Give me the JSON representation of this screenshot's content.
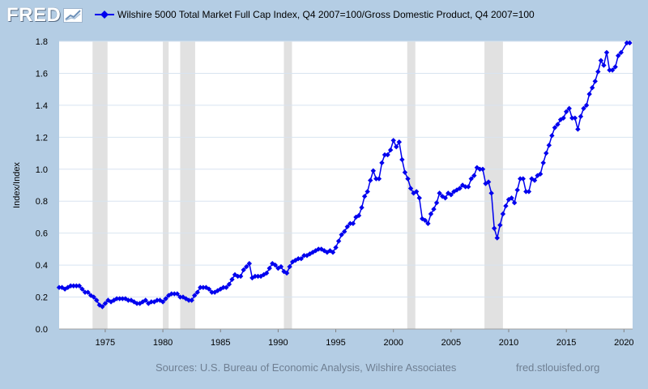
{
  "brand": {
    "logo_text": "FRED",
    "logo_icon": "trend-line-chart-icon",
    "site": "fred.stlouisfed.org"
  },
  "sources": "Sources: U.S. Bureau of Economic Analysis, Wilshire Associates",
  "colors": {
    "background": "#b4cde4",
    "plot_bg": "#ffffff",
    "series": "#0000ee",
    "recession": "#e1e1e1",
    "grid": "#d8e4f0"
  },
  "chart_data": {
    "type": "line",
    "ylabel": "Index/Index",
    "xlabel": "",
    "x_range": [
      1971.0,
      2020.75
    ],
    "ylim": [
      0.0,
      1.8
    ],
    "grid": true,
    "legend": "top",
    "y_ticks": [
      "0.0",
      "0.2",
      "0.4",
      "0.6",
      "0.8",
      "1.0",
      "1.2",
      "1.4",
      "1.6",
      "1.8"
    ],
    "x_ticks": [
      "1975",
      "1980",
      "1985",
      "1990",
      "1995",
      "2000",
      "2005",
      "2010",
      "2015",
      "2020"
    ],
    "recessions": [
      [
        1973.9,
        1975.2
      ],
      [
        1980.0,
        1980.5
      ],
      [
        1981.5,
        1982.8
      ],
      [
        1990.5,
        1991.2
      ],
      [
        2001.2,
        2001.9
      ],
      [
        2007.9,
        2009.5
      ]
    ],
    "series": [
      {
        "name": "Wilshire 5000 Total Market Full Cap Index, Q4 2007=100/Gross Domestic Product, Q4 2007=100",
        "marker": "diamond",
        "points": [
          [
            1971.0,
            0.26
          ],
          [
            1971.25,
            0.26
          ],
          [
            1971.5,
            0.25
          ],
          [
            1971.75,
            0.26
          ],
          [
            1972.0,
            0.27
          ],
          [
            1972.25,
            0.27
          ],
          [
            1972.5,
            0.27
          ],
          [
            1972.75,
            0.27
          ],
          [
            1973.0,
            0.25
          ],
          [
            1973.25,
            0.23
          ],
          [
            1973.5,
            0.23
          ],
          [
            1973.75,
            0.21
          ],
          [
            1974.0,
            0.2
          ],
          [
            1974.25,
            0.18
          ],
          [
            1974.5,
            0.15
          ],
          [
            1974.75,
            0.14
          ],
          [
            1975.0,
            0.16
          ],
          [
            1975.25,
            0.18
          ],
          [
            1975.5,
            0.17
          ],
          [
            1975.75,
            0.18
          ],
          [
            1976.0,
            0.19
          ],
          [
            1976.25,
            0.19
          ],
          [
            1976.5,
            0.19
          ],
          [
            1976.75,
            0.19
          ],
          [
            1977.0,
            0.18
          ],
          [
            1977.25,
            0.18
          ],
          [
            1977.5,
            0.17
          ],
          [
            1977.75,
            0.16
          ],
          [
            1978.0,
            0.16
          ],
          [
            1978.25,
            0.17
          ],
          [
            1978.5,
            0.18
          ],
          [
            1978.75,
            0.16
          ],
          [
            1979.0,
            0.17
          ],
          [
            1979.25,
            0.17
          ],
          [
            1979.5,
            0.18
          ],
          [
            1979.75,
            0.18
          ],
          [
            1980.0,
            0.17
          ],
          [
            1980.25,
            0.19
          ],
          [
            1980.5,
            0.21
          ],
          [
            1980.75,
            0.22
          ],
          [
            1981.0,
            0.22
          ],
          [
            1981.25,
            0.22
          ],
          [
            1981.5,
            0.2
          ],
          [
            1981.75,
            0.2
          ],
          [
            1982.0,
            0.19
          ],
          [
            1982.25,
            0.18
          ],
          [
            1982.5,
            0.18
          ],
          [
            1982.75,
            0.21
          ],
          [
            1983.0,
            0.23
          ],
          [
            1983.25,
            0.26
          ],
          [
            1983.5,
            0.26
          ],
          [
            1983.75,
            0.26
          ],
          [
            1984.0,
            0.25
          ],
          [
            1984.25,
            0.23
          ],
          [
            1984.5,
            0.23
          ],
          [
            1984.75,
            0.24
          ],
          [
            1985.0,
            0.25
          ],
          [
            1985.25,
            0.26
          ],
          [
            1985.5,
            0.26
          ],
          [
            1985.75,
            0.28
          ],
          [
            1986.0,
            0.31
          ],
          [
            1986.25,
            0.34
          ],
          [
            1986.5,
            0.33
          ],
          [
            1986.75,
            0.33
          ],
          [
            1987.0,
            0.37
          ],
          [
            1987.25,
            0.39
          ],
          [
            1987.5,
            0.41
          ],
          [
            1987.75,
            0.32
          ],
          [
            1988.0,
            0.33
          ],
          [
            1988.25,
            0.33
          ],
          [
            1988.5,
            0.33
          ],
          [
            1988.75,
            0.34
          ],
          [
            1989.0,
            0.35
          ],
          [
            1989.25,
            0.38
          ],
          [
            1989.5,
            0.41
          ],
          [
            1989.75,
            0.4
          ],
          [
            1990.0,
            0.38
          ],
          [
            1990.25,
            0.39
          ],
          [
            1990.5,
            0.36
          ],
          [
            1990.75,
            0.35
          ],
          [
            1991.0,
            0.39
          ],
          [
            1991.25,
            0.42
          ],
          [
            1991.5,
            0.43
          ],
          [
            1991.75,
            0.44
          ],
          [
            1992.0,
            0.44
          ],
          [
            1992.25,
            0.46
          ],
          [
            1992.5,
            0.46
          ],
          [
            1992.75,
            0.47
          ],
          [
            1993.0,
            0.48
          ],
          [
            1993.25,
            0.49
          ],
          [
            1993.5,
            0.5
          ],
          [
            1993.75,
            0.5
          ],
          [
            1994.0,
            0.49
          ],
          [
            1994.25,
            0.48
          ],
          [
            1994.5,
            0.49
          ],
          [
            1994.75,
            0.48
          ],
          [
            1995.0,
            0.51
          ],
          [
            1995.25,
            0.55
          ],
          [
            1995.5,
            0.59
          ],
          [
            1995.75,
            0.61
          ],
          [
            1996.0,
            0.64
          ],
          [
            1996.25,
            0.66
          ],
          [
            1996.5,
            0.66
          ],
          [
            1996.75,
            0.7
          ],
          [
            1997.0,
            0.71
          ],
          [
            1997.25,
            0.76
          ],
          [
            1997.5,
            0.83
          ],
          [
            1997.75,
            0.86
          ],
          [
            1998.0,
            0.93
          ],
          [
            1998.25,
            0.99
          ],
          [
            1998.5,
            0.94
          ],
          [
            1998.75,
            0.94
          ],
          [
            1999.0,
            1.04
          ],
          [
            1999.25,
            1.09
          ],
          [
            1999.5,
            1.09
          ],
          [
            1999.75,
            1.12
          ],
          [
            2000.0,
            1.18
          ],
          [
            2000.25,
            1.14
          ],
          [
            2000.5,
            1.17
          ],
          [
            2000.75,
            1.06
          ],
          [
            2001.0,
            0.98
          ],
          [
            2001.25,
            0.94
          ],
          [
            2001.5,
            0.88
          ],
          [
            2001.75,
            0.85
          ],
          [
            2002.0,
            0.86
          ],
          [
            2002.25,
            0.82
          ],
          [
            2002.5,
            0.69
          ],
          [
            2002.75,
            0.68
          ],
          [
            2003.0,
            0.66
          ],
          [
            2003.25,
            0.72
          ],
          [
            2003.5,
            0.75
          ],
          [
            2003.75,
            0.79
          ],
          [
            2004.0,
            0.85
          ],
          [
            2004.25,
            0.83
          ],
          [
            2004.5,
            0.82
          ],
          [
            2004.75,
            0.85
          ],
          [
            2005.0,
            0.84
          ],
          [
            2005.25,
            0.86
          ],
          [
            2005.5,
            0.87
          ],
          [
            2005.75,
            0.88
          ],
          [
            2006.0,
            0.9
          ],
          [
            2006.25,
            0.89
          ],
          [
            2006.5,
            0.89
          ],
          [
            2006.75,
            0.94
          ],
          [
            2007.0,
            0.96
          ],
          [
            2007.25,
            1.01
          ],
          [
            2007.5,
            1.0
          ],
          [
            2007.75,
            1.0
          ],
          [
            2008.0,
            0.91
          ],
          [
            2008.25,
            0.92
          ],
          [
            2008.5,
            0.85
          ],
          [
            2008.75,
            0.63
          ],
          [
            2009.0,
            0.57
          ],
          [
            2009.25,
            0.65
          ],
          [
            2009.5,
            0.72
          ],
          [
            2009.75,
            0.77
          ],
          [
            2010.0,
            0.81
          ],
          [
            2010.25,
            0.82
          ],
          [
            2010.5,
            0.79
          ],
          [
            2010.75,
            0.87
          ],
          [
            2011.0,
            0.94
          ],
          [
            2011.25,
            0.94
          ],
          [
            2011.5,
            0.86
          ],
          [
            2011.75,
            0.86
          ],
          [
            2012.0,
            0.94
          ],
          [
            2012.25,
            0.93
          ],
          [
            2012.5,
            0.96
          ],
          [
            2012.75,
            0.97
          ],
          [
            2013.0,
            1.04
          ],
          [
            2013.25,
            1.1
          ],
          [
            2013.5,
            1.15
          ],
          [
            2013.75,
            1.21
          ],
          [
            2014.0,
            1.26
          ],
          [
            2014.25,
            1.28
          ],
          [
            2014.5,
            1.31
          ],
          [
            2014.75,
            1.32
          ],
          [
            2015.0,
            1.36
          ],
          [
            2015.25,
            1.38
          ],
          [
            2015.5,
            1.32
          ],
          [
            2015.75,
            1.32
          ],
          [
            2016.0,
            1.25
          ],
          [
            2016.25,
            1.33
          ],
          [
            2016.5,
            1.38
          ],
          [
            2016.75,
            1.4
          ],
          [
            2017.0,
            1.47
          ],
          [
            2017.25,
            1.51
          ],
          [
            2017.5,
            1.55
          ],
          [
            2017.75,
            1.61
          ],
          [
            2018.0,
            1.68
          ],
          [
            2018.25,
            1.65
          ],
          [
            2018.5,
            1.73
          ],
          [
            2018.75,
            1.62
          ],
          [
            2019.0,
            1.62
          ],
          [
            2019.25,
            1.64
          ],
          [
            2019.5,
            1.71
          ],
          [
            2019.75,
            1.73
          ],
          [
            2020.25,
            1.79
          ],
          [
            2020.5,
            1.79
          ]
        ]
      }
    ]
  }
}
